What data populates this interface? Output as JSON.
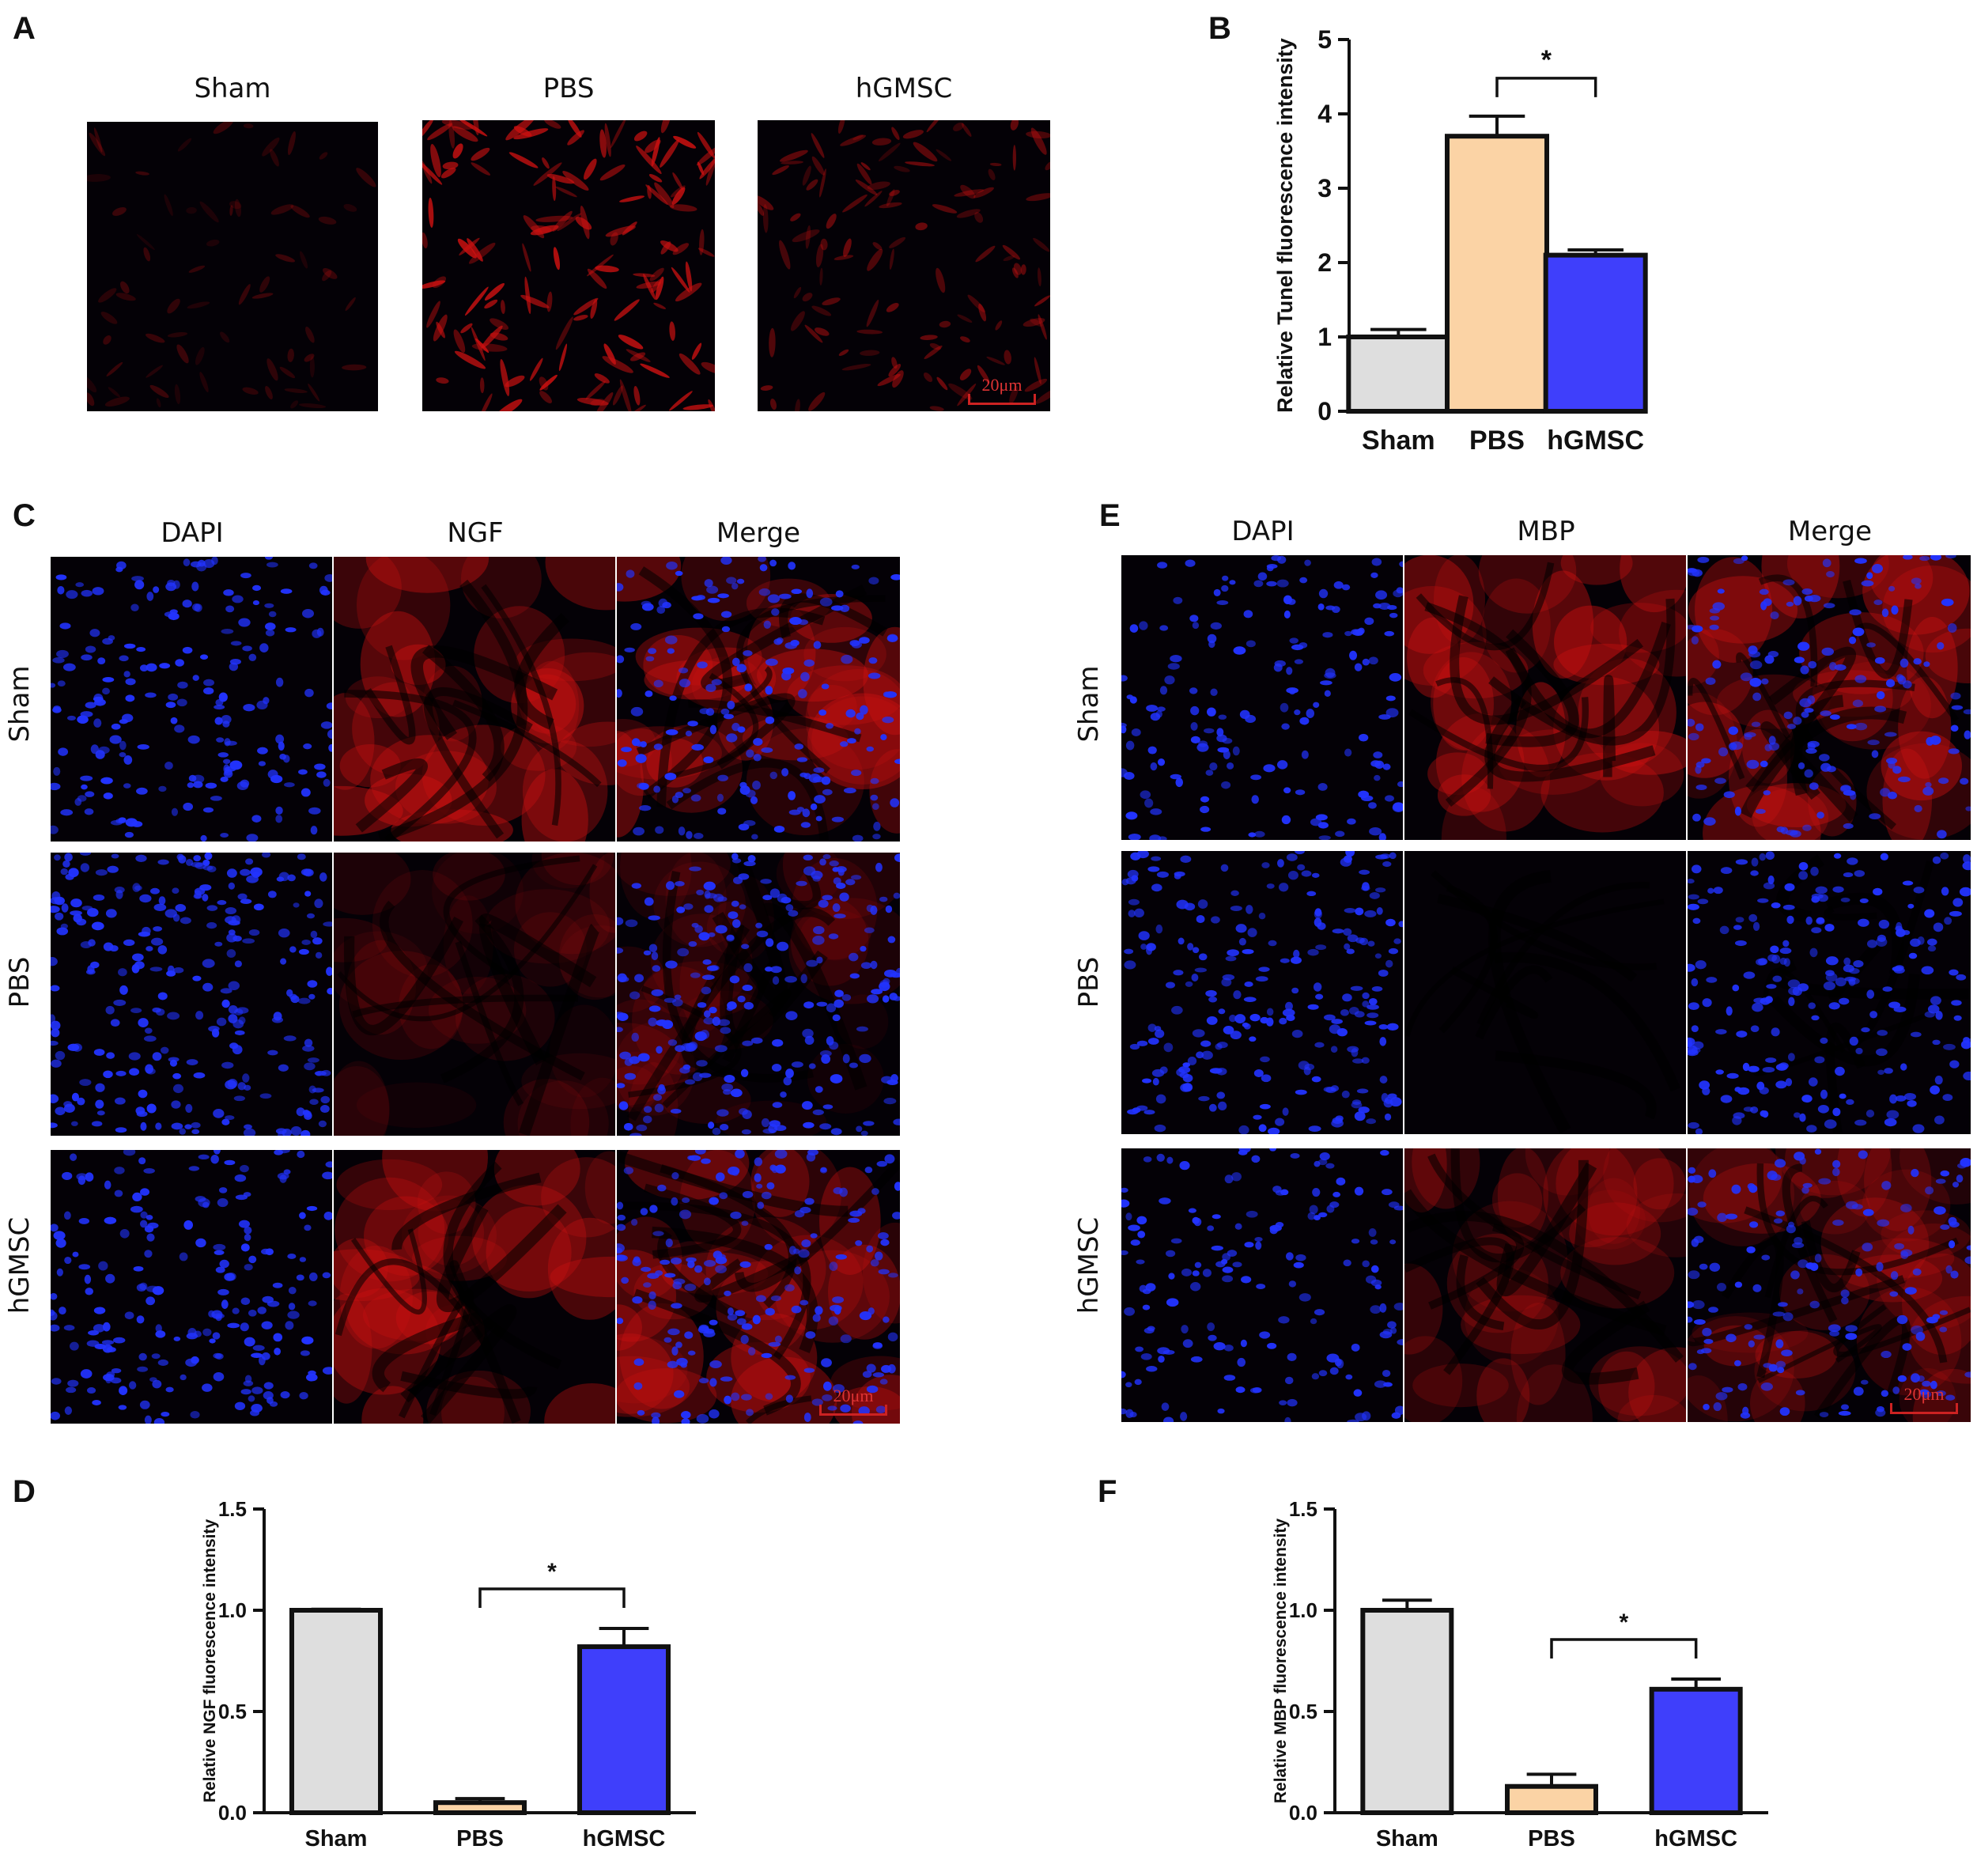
{
  "panels": {
    "A": {
      "letter": "A",
      "labels": [
        "Sham",
        "PBS",
        "hGMSC"
      ],
      "scale": "20μm"
    },
    "C": {
      "letter": "C",
      "columns": [
        "DAPI",
        "NGF",
        "Merge"
      ],
      "rows": [
        "Sham",
        "PBS",
        "hGMSC"
      ],
      "scale": "20μm"
    },
    "E": {
      "letter": "E",
      "columns": [
        "DAPI",
        "MBP",
        "Merge"
      ],
      "rows": [
        "Sham",
        "PBS",
        "hGMSC"
      ],
      "scale": "20μm"
    }
  },
  "colors": {
    "sham": "#dedede",
    "pbs": "#fbd3a5",
    "hgmsc": "#3f3ffb",
    "dapi": "#2233ff",
    "stain": "#cc1111"
  },
  "chart_data": [
    {
      "panel": "B",
      "type": "bar",
      "ylabel": "Relative Tunel  fluorescence intensity",
      "categories": [
        "Sham",
        "PBS",
        "hGMSC"
      ],
      "values": [
        1.0,
        3.7,
        2.1
      ],
      "errors": [
        0.1,
        0.27,
        0.07
      ],
      "ylim": [
        0,
        5
      ],
      "yticks": [
        "0",
        "1",
        "2",
        "3",
        "4",
        "5"
      ],
      "significance": {
        "from": "PBS",
        "to": "hGMSC",
        "label": "*"
      }
    },
    {
      "panel": "D",
      "type": "bar",
      "ylabel": "Relative NGF fluorescence intensity",
      "categories": [
        "Sham",
        "PBS",
        "hGMSC"
      ],
      "values": [
        1.0,
        0.05,
        0.82
      ],
      "errors": [
        0.005,
        0.02,
        0.09
      ],
      "ylim": [
        0,
        1.5
      ],
      "yticks": [
        "0.0",
        "0.5",
        "1.0",
        "1.5"
      ],
      "significance": {
        "from": "PBS",
        "to": "hGMSC",
        "label": "*"
      }
    },
    {
      "panel": "F",
      "type": "bar",
      "ylabel": "Relative MBP fluorescence intensity",
      "categories": [
        "Sham",
        "PBS",
        "hGMSC"
      ],
      "values": [
        1.0,
        0.13,
        0.61
      ],
      "errors": [
        0.05,
        0.06,
        0.05
      ],
      "ylim": [
        0,
        1.5
      ],
      "yticks": [
        "0.0",
        "0.5",
        "1.0",
        "1.5"
      ],
      "significance": {
        "from": "PBS",
        "to": "hGMSC",
        "label": "*"
      }
    }
  ]
}
